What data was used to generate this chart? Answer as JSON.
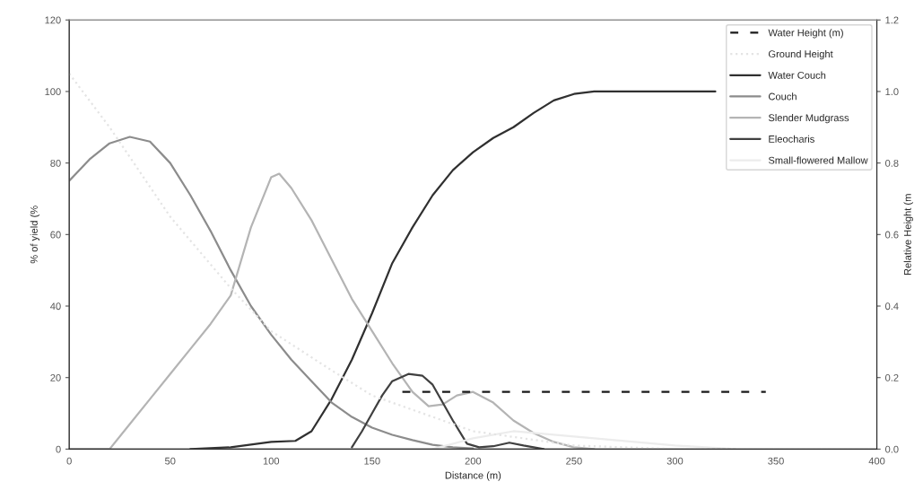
{
  "chart_data": {
    "type": "line",
    "xlabel": "Distance (m)",
    "ylabel": "% of yield (%",
    "y2label": "Relative Height (m",
    "xlim": [
      0,
      400
    ],
    "xticks": [
      0,
      50,
      100,
      150,
      200,
      250,
      300,
      350,
      400
    ],
    "ylim": [
      0,
      120
    ],
    "yticks": [
      0,
      20,
      40,
      60,
      80,
      100,
      120
    ],
    "y2lim": [
      0,
      1.2
    ],
    "y2ticks": [
      {
        "value": 0,
        "label": "0.0"
      },
      0.2,
      0.4,
      0.6,
      0.8,
      {
        "value": 1,
        "label": "1.0"
      },
      1.2
    ],
    "legend": "top right",
    "grid": false,
    "marker": "none",
    "series": [
      {
        "name": "Water Height (m)",
        "axis": "y2",
        "color": "#1a1a1a",
        "line_style": "dashed",
        "x": [
          165,
          345
        ],
        "values": [
          0.16,
          0.16
        ]
      },
      {
        "name": "Ground Height",
        "axis": "y2",
        "color": "#e4e4e4",
        "line_style": "dotted",
        "x": [
          0,
          20,
          50,
          80,
          100,
          130,
          150,
          200,
          250,
          300,
          400
        ],
        "values": [
          1.05,
          0.9,
          0.65,
          0.45,
          0.33,
          0.22,
          0.15,
          0.05,
          0.01,
          0,
          0
        ]
      },
      {
        "name": "Water Couch",
        "color": "#303030",
        "line_style": "solid",
        "x": [
          60,
          80,
          100,
          112,
          120,
          130,
          140,
          150,
          160,
          170,
          180,
          190,
          200,
          210,
          220,
          230,
          240,
          250,
          260,
          320
        ],
        "values": [
          0,
          0.5,
          2,
          2.3,
          5,
          14,
          25,
          38,
          52,
          62,
          71,
          78,
          83,
          87,
          90,
          94,
          97.5,
          99.3,
          100,
          100
        ]
      },
      {
        "name": "Couch",
        "color": "#8c8c8c",
        "line_style": "solid",
        "x": [
          0,
          10,
          20,
          30,
          40,
          50,
          60,
          70,
          80,
          90,
          100,
          110,
          120,
          130,
          140,
          150,
          160,
          170,
          180,
          190,
          200
        ],
        "values": [
          75,
          81,
          85.5,
          87.3,
          86,
          80,
          71,
          61,
          50,
          40,
          32,
          25,
          19,
          13,
          9,
          6,
          4,
          2.5,
          1.2,
          0.5,
          0.2
        ]
      },
      {
        "name": "Slender Mudgrass",
        "color": "#b4b4b4",
        "line_style": "solid",
        "x": [
          0,
          20,
          30,
          40,
          50,
          60,
          70,
          80,
          90,
          100,
          104,
          110,
          120,
          130,
          140,
          150,
          160,
          170,
          178,
          185,
          192,
          200,
          210,
          220,
          230,
          240,
          250,
          260
        ],
        "values": [
          0,
          0,
          7,
          14,
          21,
          28,
          35,
          43,
          62,
          76,
          77,
          73,
          64,
          53,
          42,
          33,
          24,
          16,
          12,
          12.5,
          15,
          16,
          13,
          8,
          4.5,
          2,
          0.5,
          0
        ]
      },
      {
        "name": "Eleocharis",
        "color": "#404040",
        "line_style": "solid",
        "x": [
          140,
          145,
          150,
          155,
          160,
          168,
          175,
          180,
          190,
          197,
          203,
          210,
          218,
          225,
          235
        ],
        "values": [
          0.5,
          5,
          10,
          15,
          19,
          21,
          20.5,
          18,
          8,
          1.5,
          0.5,
          0.8,
          1.8,
          1,
          0
        ]
      },
      {
        "name": "Small-flowered Mallow",
        "color": "#ececec",
        "line_style": "solid",
        "x": [
          180,
          200,
          220,
          260,
          300,
          330
        ],
        "values": [
          0,
          3,
          5,
          3,
          1,
          0
        ]
      }
    ]
  }
}
